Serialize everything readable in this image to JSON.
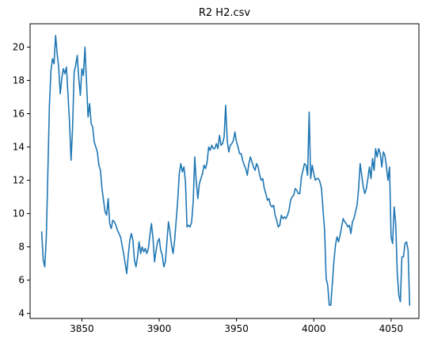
{
  "chart_data": {
    "type": "line",
    "title": "R2 H2.csv",
    "xlabel": "",
    "ylabel": "",
    "xlim": [
      3816.5,
      4068
    ],
    "ylim": [
      3.7,
      21.4
    ],
    "xticks": [
      3850,
      3900,
      3950,
      4000,
      4050
    ],
    "yticks": [
      4,
      6,
      8,
      10,
      12,
      14,
      16,
      18,
      20
    ],
    "grid": false,
    "legend": null,
    "series": [
      {
        "color": "#1f77b4",
        "x": [
          3824,
          3825,
          3826,
          3827,
          3828,
          3829,
          3830,
          3831,
          3832,
          3833,
          3834,
          3835,
          3836,
          3837,
          3838,
          3839,
          3840,
          3841,
          3842,
          3843,
          3844,
          3845,
          3846,
          3847,
          3848,
          3849,
          3850,
          3851,
          3852,
          3853,
          3854,
          3855,
          3856,
          3857,
          3858,
          3859,
          3860,
          3861,
          3862,
          3863,
          3864,
          3865,
          3866,
          3867,
          3868,
          3869,
          3870,
          3871,
          3872,
          3873,
          3874,
          3875,
          3876,
          3877,
          3878,
          3879,
          3880,
          3881,
          3882,
          3883,
          3884,
          3885,
          3886,
          3887,
          3888,
          3889,
          3890,
          3891,
          3892,
          3893,
          3894,
          3895,
          3896,
          3897,
          3898,
          3899,
          3900,
          3901,
          3902,
          3903,
          3904,
          3905,
          3906,
          3907,
          3908,
          3909,
          3910,
          3911,
          3912,
          3913,
          3914,
          3915,
          3916,
          3917,
          3918,
          3919,
          3920,
          3921,
          3922,
          3923,
          3924,
          3925,
          3926,
          3927,
          3928,
          3929,
          3930,
          3931,
          3932,
          3933,
          3934,
          3935,
          3936,
          3937,
          3938,
          3939,
          3940,
          3941,
          3942,
          3943,
          3944,
          3945,
          3946,
          3947,
          3948,
          3949,
          3950,
          3951,
          3952,
          3953,
          3954,
          3955,
          3956,
          3957,
          3958,
          3959,
          3960,
          3961,
          3962,
          3963,
          3964,
          3965,
          3966,
          3967,
          3968,
          3969,
          3970,
          3971,
          3972,
          3973,
          3974,
          3975,
          3976,
          3977,
          3978,
          3979,
          3980,
          3981,
          3982,
          3983,
          3984,
          3985,
          3986,
          3987,
          3988,
          3989,
          3990,
          3991,
          3992,
          3993,
          3994,
          3995,
          3996,
          3997,
          3998,
          3999,
          4000,
          4001,
          4002,
          4003,
          4004,
          4005,
          4006,
          4007,
          4008,
          4009,
          4010,
          4011,
          4012,
          4013,
          4014,
          4015,
          4016,
          4017,
          4018,
          4019,
          4020,
          4021,
          4022,
          4023,
          4024,
          4025,
          4026,
          4027,
          4028,
          4029,
          4030,
          4031,
          4032,
          4033,
          4034,
          4035,
          4036,
          4037,
          4038,
          4039,
          4040,
          4041,
          4042,
          4043,
          4044,
          4045,
          4046,
          4047,
          4048,
          4049,
          4050,
          4051,
          4052,
          4053,
          4054,
          4055,
          4056,
          4057,
          4058,
          4059,
          4060,
          4061,
          4062
        ],
        "y": [
          8.9,
          7.2,
          6.8,
          8.6,
          12.5,
          16.5,
          18.6,
          19.3,
          19.0,
          20.7,
          19.6,
          18.8,
          17.2,
          18.1,
          18.7,
          18.4,
          18.8,
          17.2,
          15.5,
          13.2,
          15.2,
          18.5,
          18.9,
          19.5,
          18.1,
          17.1,
          18.7,
          18.3,
          20.0,
          17.9,
          15.8,
          16.6,
          15.4,
          15.2,
          14.3,
          14.0,
          13.7,
          12.9,
          12.6,
          11.5,
          10.8,
          10.1,
          9.9,
          10.9,
          9.4,
          9.1,
          9.6,
          9.5,
          9.3,
          9.0,
          8.8,
          8.6,
          8.1,
          7.6,
          7.0,
          6.4,
          7.5,
          8.4,
          8.8,
          8.4,
          7.2,
          6.8,
          7.4,
          8.3,
          7.6,
          8.0,
          7.7,
          7.9,
          7.6,
          7.9,
          8.7,
          9.4,
          8.5,
          7.1,
          7.8,
          8.3,
          8.5,
          7.8,
          7.5,
          6.8,
          7.1,
          8.3,
          9.5,
          8.9,
          8.1,
          7.6,
          8.4,
          9.6,
          10.8,
          12.4,
          13.0,
          12.5,
          12.8,
          11.9,
          9.2,
          9.3,
          9.2,
          9.5,
          10.7,
          13.4,
          11.9,
          10.9,
          11.8,
          12.1,
          12.4,
          12.9,
          12.7,
          13.1,
          14.0,
          13.8,
          14.1,
          13.9,
          13.9,
          14.2,
          13.9,
          14.7,
          14.1,
          14.2,
          14.6,
          16.5,
          14.4,
          13.7,
          14.1,
          14.2,
          14.4,
          14.9,
          14.3,
          14.0,
          13.6,
          13.6,
          13.2,
          12.9,
          12.7,
          12.3,
          13.0,
          13.4,
          13.1,
          12.8,
          12.6,
          13.0,
          12.8,
          12.3,
          12.0,
          12.1,
          11.5,
          11.2,
          10.8,
          10.9,
          10.5,
          10.4,
          10.5,
          9.9,
          9.6,
          9.2,
          9.3,
          9.9,
          9.7,
          9.8,
          9.7,
          9.9,
          10.2,
          10.8,
          11.0,
          11.1,
          11.5,
          11.4,
          11.2,
          11.2,
          12.2,
          12.6,
          13.0,
          12.9,
          12.3,
          16.1,
          12.1,
          12.9,
          12.4,
          12.0,
          12.1,
          12.1,
          11.9,
          11.5,
          10.2,
          9.0,
          6.1,
          5.7,
          4.5,
          4.5,
          5.8,
          7.1,
          8.1,
          8.6,
          8.3,
          8.7,
          9.2,
          9.7,
          9.5,
          9.4,
          9.2,
          9.3,
          8.8,
          9.5,
          9.7,
          10.1,
          10.5,
          11.5,
          13.0,
          12.3,
          11.6,
          11.2,
          11.5,
          12.1,
          12.8,
          12.1,
          13.3,
          12.6,
          13.9,
          13.4,
          13.9,
          13.6,
          12.8,
          13.7,
          13.5,
          12.8,
          12.0,
          12.8,
          8.6,
          8.2,
          10.4,
          9.4,
          6.4,
          5.1,
          4.7,
          7.4,
          7.4,
          8.2,
          8.3,
          7.8,
          4.5
        ]
      }
    ]
  }
}
